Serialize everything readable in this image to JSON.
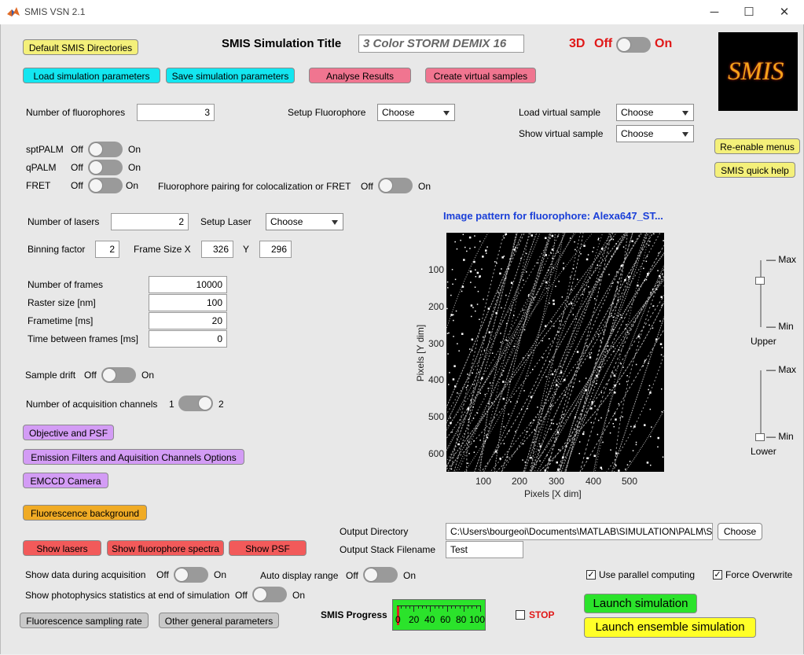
{
  "window": {
    "title": "SMIS VSN 2.1",
    "minimize": "─",
    "maximize": "☐",
    "close": "✕"
  },
  "colors": {
    "yellow": "#f4f07a",
    "cyan": "#13e6f0",
    "pink": "#f07590",
    "violet": "#d39cf5",
    "orange": "#f0ab25",
    "red": "#f25a5a",
    "gray": "#c9c9c9",
    "green": "#2be32b",
    "brightyellow": "#ffff28"
  },
  "top": {
    "default_dirs": "Default SMIS Directories",
    "sim_title_label": "SMIS Simulation Title",
    "sim_title_value": "3 Color STORM DEMIX 16",
    "three_d": "3D",
    "off": "Off",
    "on": "On",
    "logo": "SMIS",
    "load_params": "Load simulation parameters",
    "save_params": "Save simulation parameters",
    "analyse": "Analyse Results",
    "create_virtual": "Create virtual samples",
    "reenable_menus": "Re-enable menus",
    "quick_help": "SMIS quick help"
  },
  "fluor": {
    "num_label": "Number of fluorophores",
    "num_value": "3",
    "setup_label": "Setup Fluorophore",
    "setup_choice": "Choose",
    "load_vs_label": "Load virtual sample",
    "load_vs_choice": "Choose",
    "show_vs_label": "Show virtual sample",
    "show_vs_choice": "Choose"
  },
  "modes": {
    "sptpalm": "sptPALM",
    "qpalm": "qPALM",
    "fret": "FRET",
    "off": "Off",
    "on": "On",
    "pairing_label": "Fluorophore pairing for colocalization or FRET"
  },
  "lasers": {
    "num_label": "Number of lasers",
    "num_value": "2",
    "setup_label": "Setup  Laser",
    "setup_choice": "Choose"
  },
  "frame": {
    "binning_label": "Binning factor",
    "binning_value": "2",
    "size_x_label": "Frame Size X",
    "size_x_value": "326",
    "y_label": "Y",
    "size_y_value": "296"
  },
  "acq": {
    "frames_label": "Number of frames",
    "frames_value": "10000",
    "raster_label": "Raster size [nm]",
    "raster_value": "100",
    "frametime_label": "Frametime [ms]",
    "frametime_value": "20",
    "between_label": "Time between frames [ms]",
    "between_value": "0",
    "drift_label": "Sample drift",
    "off": "Off",
    "on": "On",
    "channels_label": "Number of acquisition channels",
    "ch1": "1",
    "ch2": "2"
  },
  "buttons": {
    "objective": "Objective and PSF",
    "emission": "Emission Filters and Aquisition Channels Options",
    "emccd": "EMCCD Camera",
    "background": "Fluorescence background",
    "show_lasers": "Show lasers",
    "show_spectra": "Show fluorophore spectra",
    "show_psf": "Show PSF",
    "sampling_rate": "Fluorescence sampling rate",
    "other_params": "Other general parameters"
  },
  "image": {
    "title": "Image pattern for fluorophore: Alexa647_ST...",
    "xlabel": "Pixels [X dim]",
    "ylabel": "Pixels [Y dim]",
    "xticks": [
      "100",
      "200",
      "300",
      "400",
      "500"
    ],
    "yticks": [
      "100",
      "200",
      "300",
      "400",
      "500",
      "600"
    ]
  },
  "sliders": {
    "max": "— Max",
    "min": "— Min",
    "upper": "Upper",
    "lower": "Lower",
    "upper_level": 0.7,
    "lower_level": 0.0
  },
  "output": {
    "dir_label": "Output Directory",
    "dir_value": "C:\\Users\\bourgeoi\\Documents\\MATLAB\\SIMULATION\\PALM\\S",
    "choose": "Choose",
    "stack_label": "Output Stack Filename",
    "stack_value": "Test"
  },
  "bottom": {
    "show_data_label": "Show data during acquisition",
    "auto_range_label": "Auto display range",
    "photophys_label": "Show photophysics statistics at end of simulation",
    "off": "Off",
    "on": "On",
    "parallel": "Use parallel computing",
    "force_overwrite": "Force Overwrite",
    "progress_label": "SMIS Progress",
    "progress_ticks": [
      "0",
      "20",
      "40",
      "60",
      "80",
      "100"
    ],
    "progress_value": 0,
    "stop": "STOP",
    "launch": "Launch simulation",
    "launch_ensemble": "Launch ensemble simulation"
  }
}
